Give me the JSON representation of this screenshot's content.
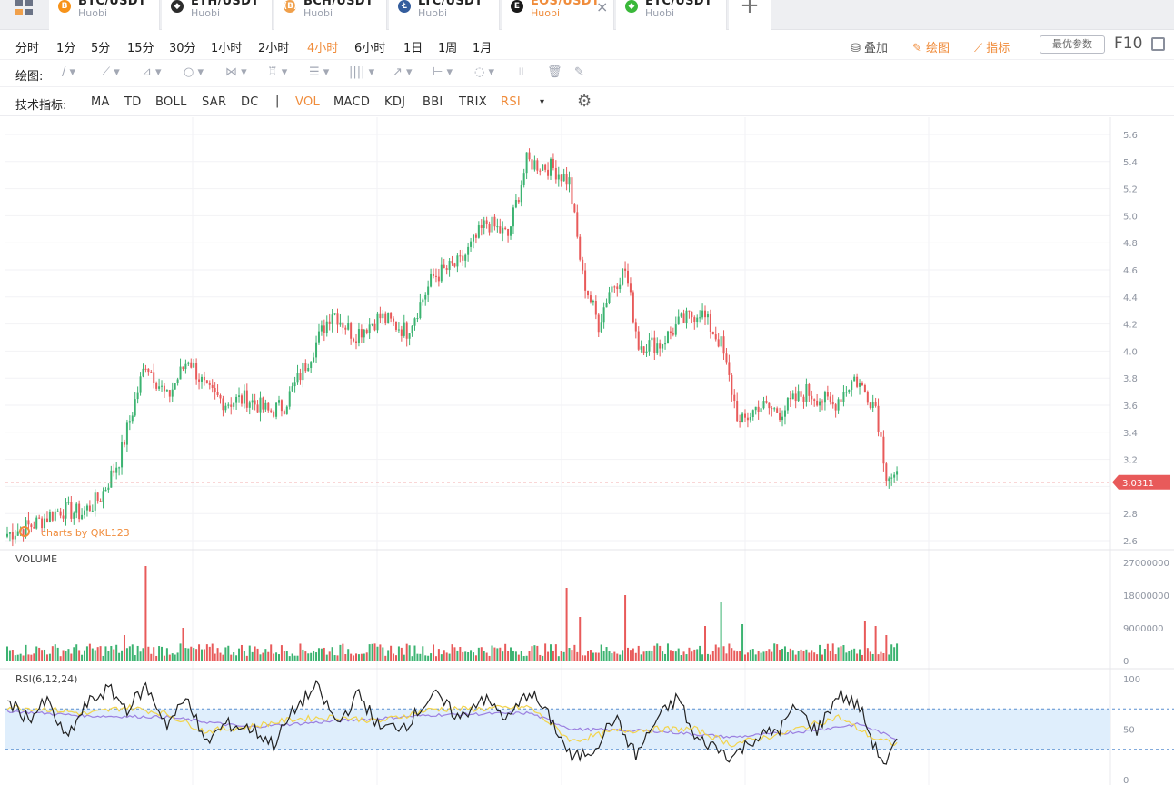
{
  "tabs": [
    {
      "pair": "BTC/USDT",
      "exchange": "Huobi",
      "coin_color": "#f7931a",
      "coin_glyph": "B"
    },
    {
      "pair": "ETH/USDT",
      "exchange": "Huobi",
      "coin_color": "#2c2c2c",
      "coin_glyph": "◆"
    },
    {
      "pair": "BCH/USDT",
      "exchange": "Huobi",
      "coin_color": "#f0a04b",
      "coin_glyph": "(B)"
    },
    {
      "pair": "LTC/USDT",
      "exchange": "Huobi",
      "coin_color": "#345d9d",
      "coin_glyph": "Ł"
    },
    {
      "pair": "EOS/USDT",
      "exchange": "Huobi",
      "coin_color": "#1a1a1a",
      "coin_glyph": "E",
      "active": true
    },
    {
      "pair": "ETC/USDT",
      "exchange": "Huobi",
      "coin_color": "#3ab83a",
      "coin_glyph": "◆"
    }
  ],
  "add_tab_label": "+",
  "close_glyph": "×",
  "periods": [
    "分时",
    "1分",
    "5分",
    "15分",
    "30分",
    "1小时",
    "2小时",
    "4小时",
    "6小时",
    "1日",
    "1周",
    "1月"
  ],
  "active_period": "4小时",
  "right_actions": {
    "overlay": "叠加",
    "draw": "绘图",
    "indicators": "指标",
    "best_params": "最优参数",
    "f10": "F10"
  },
  "draw_toolbar": {
    "label": "绘图:",
    "tools": [
      "/ ▾",
      "⟋ ▾",
      "⊿ ▾",
      "○ ▾",
      "⋈ ▾",
      "♖ ▾",
      "☰ ▾",
      "|||| ▾",
      "↗ ▾",
      "⊢ ▾",
      "◌ ▾",
      "⫫",
      "🗑",
      "✎"
    ]
  },
  "indicator_toolbar": {
    "label": "技术指标:",
    "main": [
      "MA",
      "TD",
      "BOLL",
      "SAR",
      "DC"
    ],
    "separator": "|",
    "sub": [
      "VOL",
      "MACD",
      "KDJ",
      "BBI",
      "TRIX",
      "RSI"
    ],
    "active": [
      "VOL",
      "RSI"
    ],
    "more_glyph": "▾"
  },
  "watermark": "charts by QKL123",
  "colors": {
    "up": "#3cb371",
    "down": "#e85a5a",
    "accent": "#f08c3b",
    "rsi_band": "#dfeefc",
    "rsi6": "#222222",
    "rsi12": "#f2d44c",
    "rsi24": "#9b7fe0"
  },
  "chart_data": {
    "type": "candlestick",
    "price_axis": {
      "ticks": [
        "5.6",
        "5.4",
        "5.2",
        "5.0",
        "4.8",
        "4.6",
        "4.4",
        "4.2",
        "4.0",
        "3.8",
        "3.6",
        "3.4",
        "3.2",
        "2.8",
        "2.6"
      ],
      "range": [
        2.6,
        5.6
      ]
    },
    "last_price": "3.0311",
    "close_path": [
      [
        0,
        2.65
      ],
      [
        10,
        2.72
      ],
      [
        20,
        2.83
      ],
      [
        28,
        2.8
      ],
      [
        35,
        2.92
      ],
      [
        42,
        3.2
      ],
      [
        52,
        3.92
      ],
      [
        60,
        3.65
      ],
      [
        68,
        3.95
      ],
      [
        75,
        3.7
      ],
      [
        82,
        3.62
      ],
      [
        90,
        3.65
      ],
      [
        98,
        3.55
      ],
      [
        104,
        3.6
      ],
      [
        112,
        3.9
      ],
      [
        122,
        4.3
      ],
      [
        130,
        4.12
      ],
      [
        140,
        4.25
      ],
      [
        150,
        4.15
      ],
      [
        160,
        4.55
      ],
      [
        170,
        4.65
      ],
      [
        180,
        4.95
      ],
      [
        188,
        4.85
      ],
      [
        195,
        5.4
      ],
      [
        205,
        5.35
      ],
      [
        211,
        5.25
      ],
      [
        216,
        4.55
      ],
      [
        222,
        4.2
      ],
      [
        226,
        4.45
      ],
      [
        232,
        4.6
      ],
      [
        237,
        4.05
      ],
      [
        245,
        4.05
      ],
      [
        252,
        4.2
      ],
      [
        260,
        4.3
      ],
      [
        268,
        4.05
      ],
      [
        275,
        3.45
      ],
      [
        282,
        3.6
      ],
      [
        290,
        3.55
      ],
      [
        300,
        3.7
      ],
      [
        310,
        3.6
      ],
      [
        318,
        3.8
      ],
      [
        326,
        3.6
      ],
      [
        330,
        3.1
      ],
      [
        334,
        3.05
      ]
    ],
    "volume": {
      "label": "VOLUME",
      "ticks": [
        "27000000",
        "18000000",
        "9000000",
        "0"
      ],
      "max": 27000000
    },
    "volume_spikes": [
      [
        52,
        26000000
      ],
      [
        44,
        7000000
      ],
      [
        66,
        9000000
      ],
      [
        210,
        20000000
      ],
      [
        215,
        12000000
      ],
      [
        232,
        18000000
      ],
      [
        262,
        9500000
      ],
      [
        268,
        16000000
      ],
      [
        276,
        10000000
      ],
      [
        322,
        11000000
      ],
      [
        326,
        9500000
      ],
      [
        330,
        7000000
      ]
    ],
    "rsi": {
      "label": "RSI(6,12,24)",
      "ticks": [
        "100",
        "50",
        "0"
      ],
      "upper": 70,
      "lower": 30,
      "rsi6": [
        [
          0,
          78
        ],
        [
          8,
          60
        ],
        [
          15,
          78
        ],
        [
          22,
          40
        ],
        [
          30,
          75
        ],
        [
          38,
          90
        ],
        [
          45,
          70
        ],
        [
          52,
          92
        ],
        [
          60,
          55
        ],
        [
          68,
          82
        ],
        [
          74,
          35
        ],
        [
          82,
          55
        ],
        [
          92,
          50
        ],
        [
          100,
          35
        ],
        [
          108,
          70
        ],
        [
          116,
          92
        ],
        [
          124,
          55
        ],
        [
          132,
          85
        ],
        [
          140,
          50
        ],
        [
          150,
          55
        ],
        [
          160,
          85
        ],
        [
          170,
          60
        ],
        [
          178,
          82
        ],
        [
          188,
          60
        ],
        [
          196,
          88
        ],
        [
          204,
          60
        ],
        [
          212,
          20
        ],
        [
          220,
          30
        ],
        [
          228,
          62
        ],
        [
          236,
          24
        ],
        [
          244,
          60
        ],
        [
          252,
          82
        ],
        [
          258,
          40
        ],
        [
          264,
          35
        ],
        [
          272,
          22
        ],
        [
          280,
          40
        ],
        [
          290,
          50
        ],
        [
          296,
          72
        ],
        [
          304,
          48
        ],
        [
          312,
          85
        ],
        [
          320,
          72
        ],
        [
          326,
          30
        ],
        [
          330,
          15
        ],
        [
          334,
          38
        ]
      ],
      "rsi12": [
        [
          0,
          72
        ],
        [
          15,
          70
        ],
        [
          30,
          65
        ],
        [
          45,
          72
        ],
        [
          60,
          65
        ],
        [
          74,
          48
        ],
        [
          90,
          52
        ],
        [
          108,
          60
        ],
        [
          124,
          62
        ],
        [
          140,
          58
        ],
        [
          160,
          70
        ],
        [
          178,
          70
        ],
        [
          196,
          72
        ],
        [
          212,
          38
        ],
        [
          228,
          48
        ],
        [
          244,
          50
        ],
        [
          258,
          50
        ],
        [
          272,
          35
        ],
        [
          290,
          45
        ],
        [
          312,
          62
        ],
        [
          326,
          40
        ],
        [
          334,
          35
        ]
      ],
      "rsi24": [
        [
          0,
          68
        ],
        [
          30,
          63
        ],
        [
          60,
          62
        ],
        [
          90,
          52
        ],
        [
          124,
          58
        ],
        [
          160,
          64
        ],
        [
          196,
          66
        ],
        [
          212,
          50
        ],
        [
          244,
          48
        ],
        [
          272,
          42
        ],
        [
          300,
          48
        ],
        [
          320,
          55
        ],
        [
          334,
          40
        ]
      ]
    }
  }
}
